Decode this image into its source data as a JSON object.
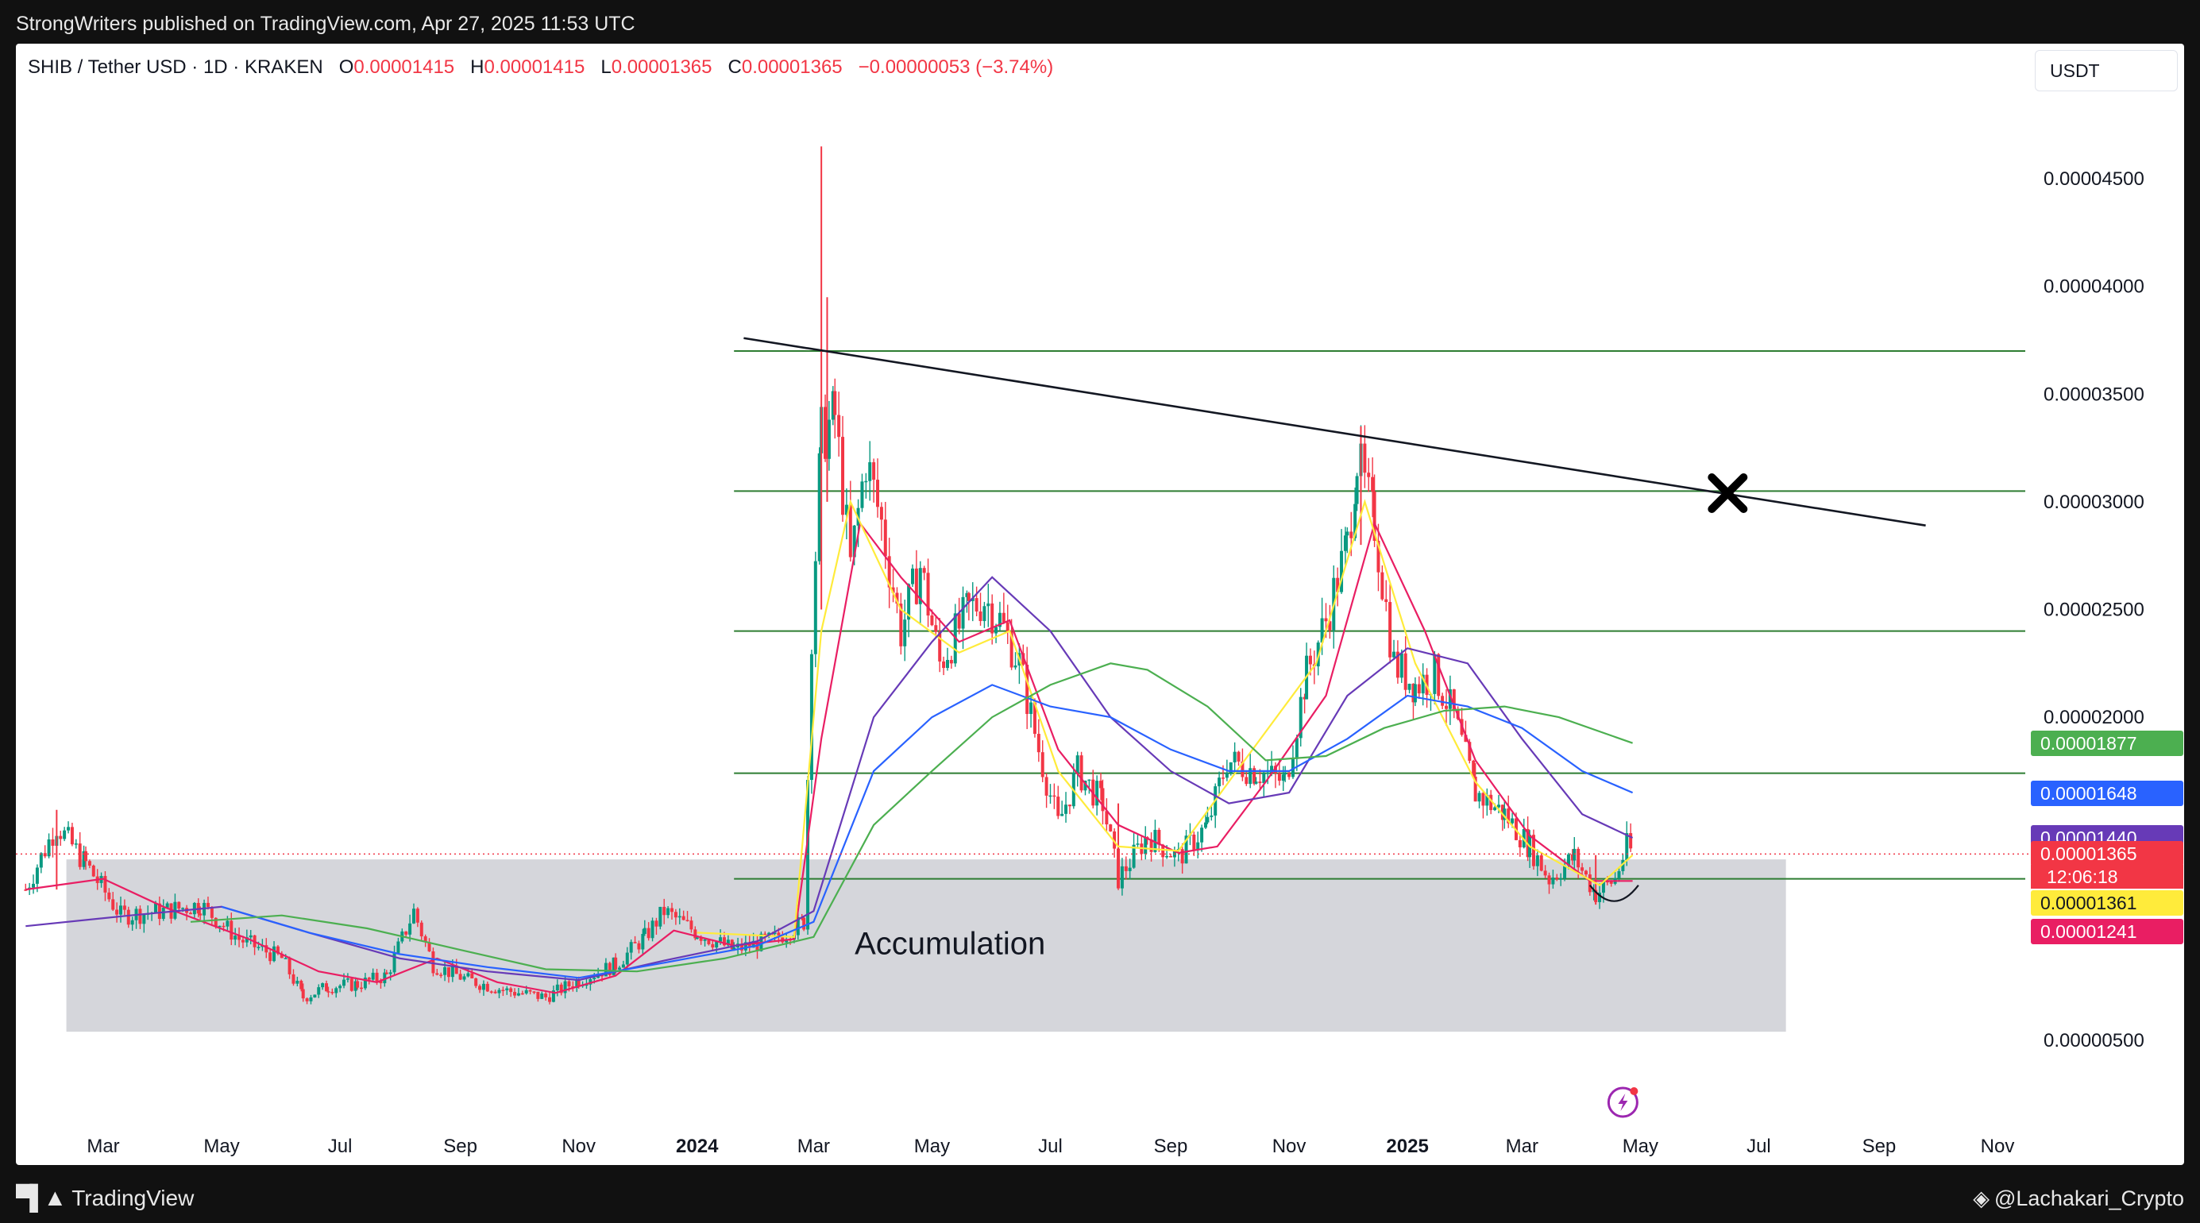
{
  "header": {
    "published_text": "StrongWriters published on TradingView.com, Apr 27, 2025 11:53 UTC"
  },
  "ohlc": {
    "symbol": "SHIB / Tether USD · 1D · KRAKEN",
    "open_label": "O",
    "open": "0.00001415",
    "high_label": "H",
    "high": "0.00001415",
    "low_label": "L",
    "low": "0.00001365",
    "close_label": "C",
    "close": "0.00001365",
    "change": "−0.00000053 (−3.74%)"
  },
  "toolbar": {
    "currency_label": "USDT"
  },
  "footer": {
    "brand": "TradingView",
    "author": "@Lachakari_Crypto"
  },
  "price_tags": [
    {
      "value": "0.00001877",
      "color": "#4caf50",
      "text_color": "light"
    },
    {
      "value": "0.00001648",
      "color": "#2962ff",
      "text_color": "light"
    },
    {
      "value": "0.00001440",
      "color": "#673ab7",
      "text_color": "light"
    },
    {
      "value": "0.00001365",
      "color": "#f23645",
      "text_color": "light"
    },
    {
      "value": "0.00001361",
      "color": "#ffeb3b",
      "text_color": "dark"
    },
    {
      "value": "0.00001241",
      "color": "#e91e63",
      "text_color": "light"
    }
  ],
  "countdown": "12:06:18",
  "chart_data": {
    "type": "line",
    "subtype": "candlestick",
    "symbol": "SHIB / Tether USD",
    "timeframe": "1D",
    "exchange": "KRAKEN",
    "y_scale": "linear",
    "ylim": [
      3.1e-06,
      5e-05
    ],
    "y_ticks": [
      {
        "value": 4.5e-05,
        "label": "0.00004500"
      },
      {
        "value": 4e-05,
        "label": "0.00004000"
      },
      {
        "value": 3.5e-05,
        "label": "0.00003500"
      },
      {
        "value": 3e-05,
        "label": "0.00003000"
      },
      {
        "value": 2.5e-05,
        "label": "0.00002500"
      },
      {
        "value": 2e-05,
        "label": "0.00002000"
      },
      {
        "value": 5e-06,
        "label": "0.00000500"
      }
    ],
    "xlim": [
      "2023-01-20",
      "2025-11-20"
    ],
    "x_ticks": [
      {
        "date": "2023-03-01",
        "label": "Mar",
        "bold": false
      },
      {
        "date": "2023-05-01",
        "label": "May",
        "bold": false
      },
      {
        "date": "2023-07-01",
        "label": "Jul",
        "bold": false
      },
      {
        "date": "2023-09-01",
        "label": "Sep",
        "bold": false
      },
      {
        "date": "2023-11-01",
        "label": "Nov",
        "bold": false
      },
      {
        "date": "2024-01-01",
        "label": "2024",
        "bold": true
      },
      {
        "date": "2024-03-01",
        "label": "Mar",
        "bold": false
      },
      {
        "date": "2024-05-01",
        "label": "May",
        "bold": false
      },
      {
        "date": "2024-07-01",
        "label": "Jul",
        "bold": false
      },
      {
        "date": "2024-09-01",
        "label": "Sep",
        "bold": false
      },
      {
        "date": "2024-11-01",
        "label": "Nov",
        "bold": false
      },
      {
        "date": "2025-01-01",
        "label": "2025",
        "bold": true
      },
      {
        "date": "2025-03-01",
        "label": "Mar",
        "bold": false
      },
      {
        "date": "2025-05-01",
        "label": "May",
        "bold": false
      },
      {
        "date": "2025-07-01",
        "label": "Jul",
        "bold": false
      },
      {
        "date": "2025-09-01",
        "label": "Sep",
        "bold": false
      },
      {
        "date": "2025-11-01",
        "label": "Nov",
        "bold": false
      }
    ],
    "price_path": [
      [
        "2023-01-20",
        1.2e-05
      ],
      [
        "2023-02-05",
        1.5e-05
      ],
      [
        "2023-02-20",
        1.32e-05
      ],
      [
        "2023-03-10",
        1.08e-05
      ],
      [
        "2023-04-01",
        1.1e-05
      ],
      [
        "2023-04-20",
        1.13e-05
      ],
      [
        "2023-05-10",
        9.7e-06
      ],
      [
        "2023-06-01",
        8.8e-06
      ],
      [
        "2023-06-12",
        7e-06
      ],
      [
        "2023-06-25",
        7.5e-06
      ],
      [
        "2023-07-10",
        7.6e-06
      ],
      [
        "2023-07-25",
        8e-06
      ],
      [
        "2023-08-08",
        1.1e-05
      ],
      [
        "2023-08-18",
        8.5e-06
      ],
      [
        "2023-09-05",
        7.8e-06
      ],
      [
        "2023-09-25",
        7.3e-06
      ],
      [
        "2023-10-15",
        7e-06
      ],
      [
        "2023-11-01",
        7.8e-06
      ],
      [
        "2023-11-20",
        8.5e-06
      ],
      [
        "2023-12-05",
        9.8e-06
      ],
      [
        "2023-12-15",
        1.1e-05
      ],
      [
        "2024-01-01",
        1e-05
      ],
      [
        "2024-01-20",
        9.2e-06
      ],
      [
        "2024-02-10",
        9.7e-06
      ],
      [
        "2024-02-25",
        1.05e-05
      ],
      [
        "2024-02-29",
        2.4e-05
      ],
      [
        "2024-03-05",
        3.3e-05
      ],
      [
        "2024-03-12",
        3.4e-05
      ],
      [
        "2024-03-20",
        2.7e-05
      ],
      [
        "2024-03-28",
        3.2e-05
      ],
      [
        "2024-04-05",
        2.9e-05
      ],
      [
        "2024-04-15",
        2.4e-05
      ],
      [
        "2024-04-25",
        2.7e-05
      ],
      [
        "2024-05-05",
        2.25e-05
      ],
      [
        "2024-05-20",
        2.5e-05
      ],
      [
        "2024-05-28",
        2.55e-05
      ],
      [
        "2024-06-05",
        2.45e-05
      ],
      [
        "2024-06-15",
        2.25e-05
      ],
      [
        "2024-06-25",
        1.85e-05
      ],
      [
        "2024-07-05",
        1.5e-05
      ],
      [
        "2024-07-15",
        1.75e-05
      ],
      [
        "2024-07-28",
        1.6e-05
      ],
      [
        "2024-08-05",
        1.25e-05
      ],
      [
        "2024-08-20",
        1.45e-05
      ],
      [
        "2024-09-05",
        1.35e-05
      ],
      [
        "2024-09-20",
        1.5e-05
      ],
      [
        "2024-09-30",
        1.8e-05
      ],
      [
        "2024-10-15",
        1.75e-05
      ],
      [
        "2024-10-30",
        1.7e-05
      ],
      [
        "2024-11-10",
        2.2e-05
      ],
      [
        "2024-11-20",
        2.45e-05
      ],
      [
        "2024-12-01",
        2.8e-05
      ],
      [
        "2024-12-06",
        3.2e-05
      ],
      [
        "2024-12-15",
        2.9e-05
      ],
      [
        "2024-12-25",
        2.25e-05
      ],
      [
        "2025-01-05",
        2.15e-05
      ],
      [
        "2025-01-15",
        2.2e-05
      ],
      [
        "2025-01-25",
        2e-05
      ],
      [
        "2025-02-05",
        1.65e-05
      ],
      [
        "2025-02-20",
        1.55e-05
      ],
      [
        "2025-03-05",
        1.4e-05
      ],
      [
        "2025-03-15",
        1.25e-05
      ],
      [
        "2025-03-28",
        1.35e-05
      ],
      [
        "2025-04-08",
        1.18e-05
      ],
      [
        "2025-04-18",
        1.25e-05
      ],
      [
        "2025-04-24",
        1.4e-05
      ],
      [
        "2025-04-27",
        1.37e-05
      ]
    ],
    "moving_averages": [
      {
        "color": "#e91e63",
        "last_value": 1.241e-05,
        "points": [
          [
            "2023-01-20",
            1.2e-05
          ],
          [
            "2023-03-01",
            1.25e-05
          ],
          [
            "2023-04-01",
            1.12e-05
          ],
          [
            "2023-05-15",
            9.7e-06
          ],
          [
            "2023-06-20",
            8.2e-06
          ],
          [
            "2023-07-20",
            7.7e-06
          ],
          [
            "2023-08-20",
            8.8e-06
          ],
          [
            "2023-09-20",
            7.7e-06
          ],
          [
            "2023-10-20",
            7.2e-06
          ],
          [
            "2023-11-20",
            8e-06
          ],
          [
            "2023-12-20",
            1.01e-05
          ],
          [
            "2024-01-20",
            9.4e-06
          ],
          [
            "2024-02-20",
            9.7e-06
          ],
          [
            "2024-03-05",
            1.9e-05
          ],
          [
            "2024-03-25",
            2.9e-05
          ],
          [
            "2024-04-15",
            2.65e-05
          ],
          [
            "2024-05-15",
            2.35e-05
          ],
          [
            "2024-06-10",
            2.45e-05
          ],
          [
            "2024-07-05",
            1.85e-05
          ],
          [
            "2024-08-05",
            1.5e-05
          ],
          [
            "2024-09-05",
            1.37e-05
          ],
          [
            "2024-09-25",
            1.4e-05
          ],
          [
            "2024-10-20",
            1.7e-05
          ],
          [
            "2024-11-20",
            2.1e-05
          ],
          [
            "2024-12-15",
            2.9e-05
          ],
          [
            "2025-01-10",
            2.4e-05
          ],
          [
            "2025-02-05",
            1.8e-05
          ],
          [
            "2025-03-05",
            1.45e-05
          ],
          [
            "2025-04-05",
            1.24e-05
          ],
          [
            "2025-04-27",
            1.24e-05
          ]
        ]
      },
      {
        "color": "#ffeb3b",
        "last_value": 1.361e-05,
        "points": [
          [
            "2024-01-01",
            1e-05
          ],
          [
            "2024-02-20",
            9.8e-06
          ],
          [
            "2024-03-05",
            2.4e-05
          ],
          [
            "2024-03-20",
            3e-05
          ],
          [
            "2024-04-15",
            2.5e-05
          ],
          [
            "2024-05-15",
            2.3e-05
          ],
          [
            "2024-06-10",
            2.4e-05
          ],
          [
            "2024-07-05",
            1.75e-05
          ],
          [
            "2024-08-05",
            1.4e-05
          ],
          [
            "2024-09-05",
            1.38e-05
          ],
          [
            "2024-10-05",
            1.75e-05
          ],
          [
            "2024-11-15",
            2.25e-05
          ],
          [
            "2024-12-10",
            3e-05
          ],
          [
            "2025-01-05",
            2.25e-05
          ],
          [
            "2025-02-05",
            1.7e-05
          ],
          [
            "2025-03-05",
            1.4e-05
          ],
          [
            "2025-04-10",
            1.22e-05
          ],
          [
            "2025-04-27",
            1.36e-05
          ]
        ]
      },
      {
        "color": "#673ab7",
        "last_value": 1.44e-05,
        "points": [
          [
            "2023-01-20",
            1.03e-05
          ],
          [
            "2023-03-15",
            1.08e-05
          ],
          [
            "2023-05-01",
            1.12e-05
          ],
          [
            "2023-06-15",
            1e-05
          ],
          [
            "2023-08-01",
            8.8e-06
          ],
          [
            "2023-09-15",
            8.2e-06
          ],
          [
            "2023-11-01",
            7.8e-06
          ],
          [
            "2023-12-15",
            8.7e-06
          ],
          [
            "2024-02-01",
            9.6e-06
          ],
          [
            "2024-03-01",
            1.1e-05
          ],
          [
            "2024-04-01",
            2e-05
          ],
          [
            "2024-05-01",
            2.35e-05
          ],
          [
            "2024-06-01",
            2.65e-05
          ],
          [
            "2024-07-01",
            2.4e-05
          ],
          [
            "2024-08-01",
            2e-05
          ],
          [
            "2024-09-01",
            1.75e-05
          ],
          [
            "2024-10-01",
            1.6e-05
          ],
          [
            "2024-11-01",
            1.65e-05
          ],
          [
            "2024-12-01",
            2.1e-05
          ],
          [
            "2025-01-01",
            2.32e-05
          ],
          [
            "2025-02-01",
            2.25e-05
          ],
          [
            "2025-03-01",
            1.9e-05
          ],
          [
            "2025-04-01",
            1.55e-05
          ],
          [
            "2025-04-27",
            1.44e-05
          ]
        ]
      },
      {
        "color": "#2962ff",
        "last_value": 1.648e-05,
        "points": [
          [
            "2023-05-01",
            1.12e-05
          ],
          [
            "2023-06-15",
            1e-05
          ],
          [
            "2023-08-01",
            9e-06
          ],
          [
            "2023-09-15",
            8.4e-06
          ],
          [
            "2023-11-01",
            7.9e-06
          ],
          [
            "2023-12-15",
            8.6e-06
          ],
          [
            "2024-02-01",
            9.4e-06
          ],
          [
            "2024-03-01",
            1.05e-05
          ],
          [
            "2024-04-01",
            1.75e-05
          ],
          [
            "2024-05-01",
            2e-05
          ],
          [
            "2024-06-01",
            2.15e-05
          ],
          [
            "2024-07-01",
            2.05e-05
          ],
          [
            "2024-08-01",
            2e-05
          ],
          [
            "2024-09-01",
            1.85e-05
          ],
          [
            "2024-10-01",
            1.75e-05
          ],
          [
            "2024-11-01",
            1.75e-05
          ],
          [
            "2024-12-01",
            1.9e-05
          ],
          [
            "2025-01-01",
            2.1e-05
          ],
          [
            "2025-02-01",
            2.05e-05
          ],
          [
            "2025-03-01",
            1.95e-05
          ],
          [
            "2025-04-01",
            1.75e-05
          ],
          [
            "2025-04-27",
            1.65e-05
          ]
        ]
      },
      {
        "color": "#4caf50",
        "last_value": 1.877e-05,
        "points": [
          [
            "2023-04-15",
            1.05e-05
          ],
          [
            "2023-06-01",
            1.08e-05
          ],
          [
            "2023-07-15",
            1.02e-05
          ],
          [
            "2023-09-01",
            9.2e-06
          ],
          [
            "2023-10-15",
            8.3e-06
          ],
          [
            "2023-12-01",
            8.2e-06
          ],
          [
            "2024-01-15",
            8.8e-06
          ],
          [
            "2024-03-01",
            9.8e-06
          ],
          [
            "2024-04-01",
            1.5e-05
          ],
          [
            "2024-05-01",
            1.75e-05
          ],
          [
            "2024-06-01",
            2e-05
          ],
          [
            "2024-07-01",
            2.15e-05
          ],
          [
            "2024-08-01",
            2.25e-05
          ],
          [
            "2024-08-20",
            2.22e-05
          ],
          [
            "2024-09-20",
            2.05e-05
          ],
          [
            "2024-10-20",
            1.8e-05
          ],
          [
            "2024-11-20",
            1.82e-05
          ],
          [
            "2024-12-20",
            1.95e-05
          ],
          [
            "2025-01-20",
            2.03e-05
          ],
          [
            "2025-02-20",
            2.05e-05
          ],
          [
            "2025-03-20",
            2e-05
          ],
          [
            "2025-04-27",
            1.88e-05
          ]
        ]
      }
    ],
    "horizontal_levels": [
      3.7e-05,
      3.05e-05,
      2.4e-05,
      1.74e-05,
      1.25e-05
    ],
    "trendline": {
      "from": [
        "2024-01-25",
        3.76e-05
      ],
      "to": [
        "2025-09-25",
        2.89e-05
      ]
    },
    "zones": [
      {
        "label": "Accumulation",
        "from": "2023-02-10",
        "to": "2025-07-15",
        "y_low": 5.4e-06,
        "y_high": 1.34e-05
      }
    ],
    "markers": [
      {
        "type": "cross",
        "date": "2025-06-15",
        "value": 3.04e-05
      },
      {
        "type": "arc",
        "from": "2025-04-05",
        "to": "2025-04-30",
        "value": 1.22e-05
      }
    ],
    "current_price": 1.365e-05,
    "last_date": "2025-04-27"
  }
}
